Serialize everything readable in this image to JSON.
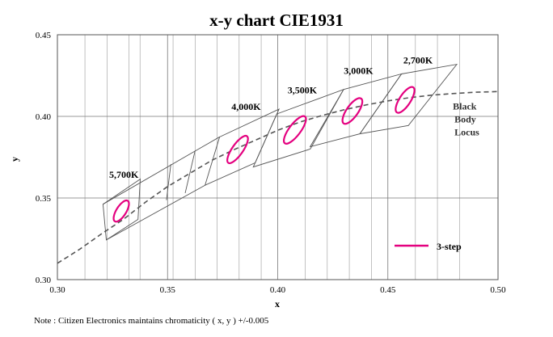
{
  "chart_data": {
    "type": "scatter",
    "title": "x-y chart  CIE1931",
    "xlabel": "x",
    "ylabel": "y",
    "xlim": [
      0.3,
      0.5
    ],
    "ylim": [
      0.3,
      0.45
    ],
    "x_ticks": [
      "0.30",
      "0.35",
      "0.40",
      "0.45",
      "0.50"
    ],
    "y_ticks": [
      "0.30",
      "0.35",
      "0.40",
      "0.45"
    ],
    "x_tick_values": [
      0.3,
      0.35,
      0.4,
      0.45,
      0.5
    ],
    "y_tick_values": [
      0.3,
      0.35,
      0.4,
      0.45
    ],
    "grid": true,
    "vertical_minor_x": [
      0.3125,
      0.3225,
      0.3325,
      0.3375,
      0.3525,
      0.3625,
      0.3725,
      0.3825,
      0.3925,
      0.4125,
      0.4225,
      0.4325,
      0.4425,
      0.4625,
      0.4725,
      0.4825
    ],
    "bins": [
      {
        "label": "5,700K",
        "polygon": [
          [
            0.3207,
            0.3462
          ],
          [
            0.3376,
            0.3616
          ],
          [
            0.3366,
            0.3369
          ],
          [
            0.3222,
            0.3243
          ]
        ],
        "label_pos": [
          0.3235,
          0.3625
        ]
      },
      {
        "label": "4,000K",
        "polygon": [
          [
            0.3736,
            0.3874
          ],
          [
            0.4006,
            0.4044
          ],
          [
            0.3898,
            0.3716
          ],
          [
            0.367,
            0.3578
          ]
        ],
        "label_pos": [
          0.379,
          0.404
        ]
      },
      {
        "label": "3,500K",
        "polygon": [
          [
            0.3996,
            0.4015
          ],
          [
            0.4299,
            0.4165
          ],
          [
            0.4148,
            0.38
          ],
          [
            0.3889,
            0.369
          ]
        ],
        "label_pos": [
          0.4045,
          0.414
        ]
      },
      {
        "label": "3,000K",
        "polygon": [
          [
            0.4299,
            0.4165
          ],
          [
            0.4562,
            0.426
          ],
          [
            0.4373,
            0.3893
          ],
          [
            0.4147,
            0.3814
          ]
        ],
        "label_pos": [
          0.43,
          0.426
        ]
      },
      {
        "label": "2,700K",
        "polygon": [
          [
            0.4562,
            0.426
          ],
          [
            0.4813,
            0.4319
          ],
          [
            0.4593,
            0.3944
          ],
          [
            0.4373,
            0.3893
          ]
        ],
        "label_pos": [
          0.457,
          0.4325
        ]
      }
    ],
    "aux_lines": [
      [
        [
          0.3207,
          0.3462
        ],
        [
          0.3736,
          0.3874
        ]
      ],
      [
        [
          0.3222,
          0.3243
        ],
        [
          0.367,
          0.3578
        ]
      ],
      [
        [
          0.3515,
          0.3707
        ],
        [
          0.3495,
          0.3487
        ]
      ],
      [
        [
          0.3625,
          0.379
        ],
        [
          0.358,
          0.353
        ]
      ]
    ],
    "ellipses": [
      {
        "cx": 0.329,
        "cy": 0.342,
        "a": 0.0055,
        "b": 0.003,
        "angle": -58
      },
      {
        "cx": 0.3818,
        "cy": 0.3797,
        "a": 0.0074,
        "b": 0.0033,
        "angle": -55
      },
      {
        "cx": 0.4078,
        "cy": 0.3917,
        "a": 0.0076,
        "b": 0.0035,
        "angle": -53
      },
      {
        "cx": 0.4339,
        "cy": 0.4033,
        "a": 0.0069,
        "b": 0.0035,
        "angle": -55
      },
      {
        "cx": 0.4578,
        "cy": 0.4101,
        "a": 0.0068,
        "b": 0.0034,
        "angle": -57
      }
    ],
    "black_body_locus": {
      "label": [
        "Black",
        "Body",
        "Locus"
      ],
      "label_pos": [
        0.4795,
        0.4043
      ],
      "x": [
        0.3,
        0.31,
        0.32,
        0.33,
        0.34,
        0.35,
        0.36,
        0.37,
        0.38,
        0.39,
        0.4,
        0.41,
        0.42,
        0.43,
        0.44,
        0.45,
        0.46,
        0.47,
        0.48,
        0.49,
        0.5
      ],
      "y": [
        0.31,
        0.3185,
        0.328,
        0.337,
        0.3475,
        0.357,
        0.365,
        0.373,
        0.3795,
        0.3855,
        0.3915,
        0.3965,
        0.4005,
        0.404,
        0.407,
        0.4095,
        0.4115,
        0.413,
        0.414,
        0.4148,
        0.4152
      ]
    },
    "legend": {
      "label": "3-step",
      "position": "bottom-right"
    },
    "colors": {
      "ellipse": "#e4007f",
      "bin": "#555555",
      "grid": "#888888",
      "locus": "#555555"
    }
  },
  "note": "Note : Citizen Electronics maintains chromaticity ( x, y ) +/-0.005"
}
